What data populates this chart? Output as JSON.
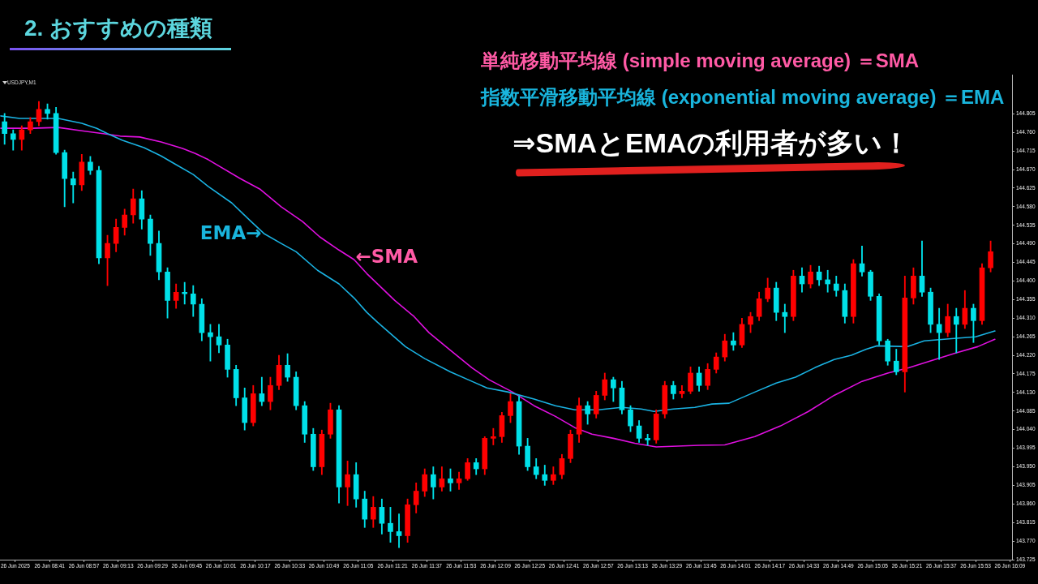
{
  "chart_data": {
    "type": "candlestick",
    "title": "2. おすすめの種類",
    "annotations": [
      "USDJPY,M1",
      "単純移動平均線 (simple moving average) ＝SMA",
      "指数平滑移動平均線 (exponential moving average) ＝EMA",
      "⇒SMAとEMAの利用者が多い！",
      {
        "text": "EMA→",
        "x": "2025-06-26T10:21",
        "y": 144.515
      },
      {
        "text": "←SMA",
        "x": "2025-06-26T11:03",
        "y": 144.452
      }
    ],
    "xlim": [
      "2025-06-26T08:18",
      "2025-06-26T16:10"
    ],
    "xticks": [
      {
        "value": "2025-06-26T08:25",
        "label": "26 Jun 2025"
      },
      {
        "value": "2025-06-26T08:41",
        "label": "26 Jun 08:41"
      },
      {
        "value": "2025-06-26T08:57",
        "label": "26 Jun 08:57"
      },
      {
        "value": "2025-06-26T09:13",
        "label": "26 Jun 09:13"
      },
      {
        "value": "2025-06-26T09:29",
        "label": "26 Jun 09:29"
      },
      {
        "value": "2025-06-26T09:45",
        "label": "26 Jun 09:45"
      },
      {
        "value": "2025-06-26T10:01",
        "label": "26 Jun 10:01"
      },
      {
        "value": "2025-06-26T10:17",
        "label": "26 Jun 10:17"
      },
      {
        "value": "2025-06-26T10:33",
        "label": "26 Jun 10:33"
      },
      {
        "value": "2025-06-26T10:49",
        "label": "26 Jun 10:49"
      },
      {
        "value": "2025-06-26T11:05",
        "label": "26 Jun 11:05"
      },
      {
        "value": "2025-06-26T11:21",
        "label": "26 Jun 11:21"
      },
      {
        "value": "2025-06-26T11:37",
        "label": "26 Jun 11:37"
      },
      {
        "value": "2025-06-26T11:53",
        "label": "26 Jun 11:53"
      },
      {
        "value": "2025-06-26T12:09",
        "label": "26 Jun 12:09"
      },
      {
        "value": "2025-06-26T12:25",
        "label": "26 Jun 12:25"
      },
      {
        "value": "2025-06-26T12:41",
        "label": "26 Jun 12:41"
      },
      {
        "value": "2025-06-26T12:57",
        "label": "26 Jun 12:57"
      },
      {
        "value": "2025-06-26T13:13",
        "label": "26 Jun 13:13"
      },
      {
        "value": "2025-06-26T13:29",
        "label": "26 Jun 13:29"
      },
      {
        "value": "2025-06-26T13:45",
        "label": "26 Jun 13:45"
      },
      {
        "value": "2025-06-26T14:01",
        "label": "26 Jun 14:01"
      },
      {
        "value": "2025-06-26T14:17",
        "label": "26 Jun 14:17"
      },
      {
        "value": "2025-06-26T14:33",
        "label": "26 Jun 14:33"
      },
      {
        "value": "2025-06-26T14:49",
        "label": "26 Jun 14:49"
      },
      {
        "value": "2025-06-26T15:05",
        "label": "26 Jun 15:05"
      },
      {
        "value": "2025-06-26T15:21",
        "label": "26 Jun 15:21"
      },
      {
        "value": "2025-06-26T15:37",
        "label": "26 Jun 15:37"
      },
      {
        "value": "2025-06-26T15:53",
        "label": "26 Jun 15:53"
      },
      {
        "value": "2025-06-26T16:09",
        "label": "26 Jun 16:09"
      }
    ],
    "ylim": [
      143.725,
      144.9
    ],
    "yticks": [
      143.725,
      {
        "value": 143.77,
        "label": "143.770"
      },
      143.815,
      {
        "value": 143.86,
        "label": "143.860"
      },
      143.905,
      {
        "value": 143.95,
        "label": "143.950"
      },
      143.995,
      {
        "value": 144.04,
        "label": "144.040"
      },
      144.085,
      {
        "value": 144.13,
        "label": "144.130"
      },
      144.175,
      {
        "value": 144.22,
        "label": "144.220"
      },
      144.265,
      {
        "value": 144.31,
        "label": "144.310"
      },
      144.355,
      {
        "value": 144.4,
        "label": "144.400"
      },
      144.445,
      {
        "value": 144.49,
        "label": "144.490"
      },
      144.535,
      {
        "value": 144.58,
        "label": "144.580"
      },
      144.625,
      {
        "value": 144.67,
        "label": "144.670"
      },
      144.715,
      {
        "value": 144.76,
        "label": "144.760"
      },
      144.805
    ],
    "x": [
      "2025-06-26T08:20",
      "2025-06-26T08:24",
      "2025-06-26T08:28",
      "2025-06-26T08:32",
      "2025-06-26T08:36",
      "2025-06-26T08:40",
      "2025-06-26T08:44",
      "2025-06-26T08:48",
      "2025-06-26T08:52",
      "2025-06-26T08:56",
      "2025-06-26T09:00",
      "2025-06-26T09:04",
      "2025-06-26T09:08",
      "2025-06-26T09:12",
      "2025-06-26T09:16",
      "2025-06-26T09:20",
      "2025-06-26T09:24",
      "2025-06-26T09:28",
      "2025-06-26T09:32",
      "2025-06-26T09:36",
      "2025-06-26T09:40",
      "2025-06-26T09:44",
      "2025-06-26T09:48",
      "2025-06-26T09:52",
      "2025-06-26T09:56",
      "2025-06-26T10:00",
      "2025-06-26T10:04",
      "2025-06-26T10:08",
      "2025-06-26T10:12",
      "2025-06-26T10:16",
      "2025-06-26T10:20",
      "2025-06-26T10:24",
      "2025-06-26T10:28",
      "2025-06-26T10:32",
      "2025-06-26T10:36",
      "2025-06-26T10:40",
      "2025-06-26T10:44",
      "2025-06-26T10:48",
      "2025-06-26T10:52",
      "2025-06-26T10:56",
      "2025-06-26T11:00",
      "2025-06-26T11:04",
      "2025-06-26T11:08",
      "2025-06-26T11:12",
      "2025-06-26T11:16",
      "2025-06-26T11:20",
      "2025-06-26T11:24",
      "2025-06-26T11:28",
      "2025-06-26T11:32",
      "2025-06-26T11:36",
      "2025-06-26T11:40",
      "2025-06-26T11:44",
      "2025-06-26T11:48",
      "2025-06-26T11:52",
      "2025-06-26T11:56",
      "2025-06-26T12:00",
      "2025-06-26T12:04",
      "2025-06-26T12:08",
      "2025-06-26T12:12",
      "2025-06-26T12:16",
      "2025-06-26T12:20",
      "2025-06-26T12:24",
      "2025-06-26T12:28",
      "2025-06-26T12:32",
      "2025-06-26T12:36",
      "2025-06-26T12:40",
      "2025-06-26T12:44",
      "2025-06-26T12:48",
      "2025-06-26T12:52",
      "2025-06-26T12:56",
      "2025-06-26T13:00",
      "2025-06-26T13:04",
      "2025-06-26T13:08",
      "2025-06-26T13:12",
      "2025-06-26T13:16",
      "2025-06-26T13:20",
      "2025-06-26T13:24",
      "2025-06-26T13:28",
      "2025-06-26T13:32",
      "2025-06-26T13:36",
      "2025-06-26T13:40",
      "2025-06-26T13:44",
      "2025-06-26T13:48",
      "2025-06-26T13:52",
      "2025-06-26T13:56",
      "2025-06-26T14:00",
      "2025-06-26T14:04",
      "2025-06-26T14:08",
      "2025-06-26T14:12",
      "2025-06-26T14:16",
      "2025-06-26T14:20",
      "2025-06-26T14:24",
      "2025-06-26T14:28",
      "2025-06-26T14:32",
      "2025-06-26T14:36",
      "2025-06-26T14:40",
      "2025-06-26T14:44",
      "2025-06-26T14:48",
      "2025-06-26T14:52",
      "2025-06-26T14:56",
      "2025-06-26T15:00",
      "2025-06-26T15:04",
      "2025-06-26T15:08",
      "2025-06-26T15:12",
      "2025-06-26T15:16",
      "2025-06-26T15:20",
      "2025-06-26T15:24",
      "2025-06-26T15:28",
      "2025-06-26T15:32",
      "2025-06-26T15:36",
      "2025-06-26T15:40",
      "2025-06-26T15:44",
      "2025-06-26T15:48",
      "2025-06-26T15:52",
      "2025-06-26T15:56",
      "2025-06-26T16:00"
    ],
    "ohlc": [
      [
        144.786,
        144.806,
        144.731,
        144.757
      ],
      [
        144.757,
        144.766,
        144.717,
        144.743
      ],
      [
        144.743,
        144.776,
        144.717,
        144.766
      ],
      [
        144.766,
        144.796,
        144.757,
        144.786
      ],
      [
        144.786,
        144.835,
        144.776,
        144.816
      ],
      [
        144.816,
        144.829,
        144.792,
        144.806
      ],
      [
        144.806,
        144.821,
        144.707,
        144.711
      ],
      [
        144.711,
        144.717,
        144.58,
        144.648
      ],
      [
        144.648,
        144.664,
        144.589,
        144.633
      ],
      [
        144.633,
        144.707,
        144.619,
        144.688
      ],
      [
        144.688,
        144.702,
        144.658,
        144.668
      ],
      [
        144.668,
        144.678,
        144.442,
        144.456
      ],
      [
        144.456,
        144.511,
        144.389,
        144.491
      ],
      [
        144.491,
        144.55,
        144.471,
        144.53
      ],
      [
        144.53,
        144.574,
        144.511,
        144.56
      ],
      [
        144.56,
        144.623,
        144.54,
        144.599
      ],
      [
        144.599,
        144.619,
        144.526,
        144.55
      ],
      [
        144.55,
        144.56,
        144.462,
        144.491
      ],
      [
        144.491,
        144.521,
        144.403,
        144.422
      ],
      [
        144.422,
        144.432,
        144.31,
        144.353
      ],
      [
        144.353,
        144.393,
        144.334,
        144.373
      ],
      [
        144.373,
        144.397,
        144.344,
        144.369
      ],
      [
        144.369,
        144.389,
        144.314,
        144.344
      ],
      [
        144.344,
        144.357,
        144.255,
        144.275
      ],
      [
        144.275,
        144.295,
        144.206,
        144.265
      ],
      [
        144.265,
        144.295,
        144.226,
        144.245
      ],
      [
        144.245,
        144.259,
        144.167,
        144.186
      ],
      [
        144.186,
        144.196,
        144.098,
        144.117
      ],
      [
        144.117,
        144.141,
        144.039,
        144.057
      ],
      [
        144.057,
        144.147,
        144.049,
        144.127
      ],
      [
        144.127,
        144.167,
        144.098,
        144.108
      ],
      [
        144.108,
        144.167,
        144.088,
        144.147
      ],
      [
        144.147,
        144.22,
        144.137,
        144.196
      ],
      [
        144.196,
        144.224,
        144.157,
        144.167
      ],
      [
        144.167,
        144.18,
        144.088,
        144.098
      ],
      [
        144.098,
        144.108,
        144.009,
        144.029
      ],
      [
        144.029,
        144.043,
        143.941,
        143.95
      ],
      [
        143.95,
        144.039,
        143.931,
        144.029
      ],
      [
        144.029,
        144.104,
        144.019,
        144.088
      ],
      [
        144.088,
        144.098,
        143.862,
        143.901
      ],
      [
        143.901,
        143.964,
        143.856,
        143.931
      ],
      [
        143.931,
        143.96,
        143.852,
        143.872
      ],
      [
        143.872,
        143.891,
        143.803,
        143.823
      ],
      [
        143.823,
        143.878,
        143.803,
        143.852
      ],
      [
        143.852,
        143.872,
        143.787,
        143.813
      ],
      [
        143.813,
        143.852,
        143.767,
        143.793
      ],
      [
        143.793,
        143.836,
        143.754,
        143.783
      ],
      [
        143.783,
        143.872,
        143.767,
        143.858
      ],
      [
        143.858,
        143.911,
        143.838,
        143.891
      ],
      [
        143.891,
        143.945,
        143.878,
        143.931
      ],
      [
        143.931,
        143.95,
        143.872,
        143.901
      ],
      [
        143.901,
        143.95,
        143.891,
        143.921
      ],
      [
        143.921,
        143.945,
        143.891,
        143.911
      ],
      [
        143.911,
        143.937,
        143.895,
        143.921
      ],
      [
        143.921,
        143.97,
        143.917,
        143.96
      ],
      [
        143.96,
        143.97,
        143.931,
        143.945
      ],
      [
        143.945,
        144.023,
        143.931,
        144.019
      ],
      [
        144.019,
        144.043,
        144.003,
        144.023
      ],
      [
        144.023,
        144.082,
        144.009,
        144.074
      ],
      [
        144.074,
        144.127,
        144.057,
        144.108
      ],
      [
        144.108,
        144.121,
        143.98,
        144.0
      ],
      [
        144.0,
        144.019,
        143.941,
        143.95
      ],
      [
        143.95,
        143.97,
        143.921,
        143.931
      ],
      [
        143.931,
        143.954,
        143.905,
        143.917
      ],
      [
        143.917,
        143.95,
        143.907,
        143.931
      ],
      [
        143.931,
        143.98,
        143.921,
        143.97
      ],
      [
        143.97,
        144.039,
        143.96,
        144.029
      ],
      [
        144.029,
        144.117,
        144.009,
        144.098
      ],
      [
        144.098,
        144.108,
        144.053,
        144.078
      ],
      [
        144.078,
        144.133,
        144.068,
        144.123
      ],
      [
        144.123,
        144.177,
        144.112,
        144.161
      ],
      [
        144.161,
        144.167,
        144.108,
        144.141
      ],
      [
        144.141,
        144.157,
        144.078,
        144.088
      ],
      [
        144.088,
        144.098,
        144.035,
        144.049
      ],
      [
        144.049,
        144.062,
        144.009,
        144.019
      ],
      [
        144.019,
        144.029,
        144.002,
        144.015
      ],
      [
        144.015,
        144.088,
        144.007,
        144.078
      ],
      [
        144.078,
        144.157,
        144.068,
        144.147
      ],
      [
        144.147,
        144.157,
        144.114,
        144.127
      ],
      [
        144.127,
        144.147,
        144.117,
        144.133
      ],
      [
        144.133,
        144.192,
        144.127,
        144.177
      ],
      [
        144.177,
        144.192,
        144.133,
        144.147
      ],
      [
        144.147,
        144.2,
        144.137,
        144.186
      ],
      [
        144.186,
        144.226,
        144.177,
        144.216
      ],
      [
        144.216,
        144.271,
        144.206,
        144.255
      ],
      [
        144.255,
        144.275,
        144.232,
        144.245
      ],
      [
        144.245,
        144.31,
        144.239,
        144.295
      ],
      [
        144.295,
        144.324,
        144.275,
        144.314
      ],
      [
        144.314,
        144.373,
        144.304,
        144.357
      ],
      [
        144.357,
        144.407,
        144.35,
        144.383
      ],
      [
        144.383,
        144.397,
        144.304,
        144.324
      ],
      [
        144.324,
        144.344,
        144.275,
        144.314
      ],
      [
        144.314,
        144.426,
        144.304,
        144.412
      ],
      [
        144.412,
        144.432,
        144.373,
        144.393
      ],
      [
        144.393,
        144.438,
        144.383,
        144.422
      ],
      [
        144.422,
        144.436,
        144.389,
        144.403
      ],
      [
        144.403,
        144.426,
        144.373,
        144.393
      ],
      [
        144.393,
        144.412,
        144.363,
        144.377
      ],
      [
        144.377,
        144.393,
        144.298,
        144.314
      ],
      [
        144.314,
        144.452,
        144.298,
        144.442
      ],
      [
        144.442,
        144.485,
        144.412,
        144.422
      ],
      [
        144.422,
        144.426,
        144.353,
        144.363
      ],
      [
        144.363,
        144.369,
        144.245,
        144.255
      ],
      [
        144.255,
        144.259,
        144.196,
        144.206
      ],
      [
        144.206,
        144.235,
        144.173,
        144.18
      ],
      [
        144.18,
        144.412,
        144.131,
        144.359
      ],
      [
        144.359,
        144.432,
        144.344,
        144.412
      ],
      [
        144.412,
        144.497,
        144.363,
        144.373
      ],
      [
        144.373,
        144.383,
        144.275,
        144.295
      ],
      [
        144.295,
        144.334,
        144.21,
        144.275
      ],
      [
        144.275,
        144.344,
        144.265,
        144.314
      ],
      [
        144.314,
        144.334,
        144.226,
        144.295
      ],
      [
        144.295,
        144.377,
        144.285,
        144.334
      ],
      [
        144.334,
        144.344,
        144.251,
        144.304
      ],
      [
        144.304,
        144.442,
        144.295,
        144.432
      ],
      [
        144.432,
        144.497,
        144.422,
        144.471
      ]
    ],
    "colors": [
      "#00e0e8",
      "#00e0e8",
      "#ff0000",
      "#ff0000",
      "#ff0000",
      "#00e0e8",
      "#00e0e8",
      "#00e0e8",
      "#00e0e8",
      "#ff0000",
      "#00e0e8",
      "#00e0e8",
      "#ff0000",
      "#ff0000",
      "#ff0000",
      "#ff0000",
      "#00e0e8",
      "#00e0e8",
      "#00e0e8",
      "#00e0e8",
      "#ff0000",
      "#00e0e8",
      "#00e0e8",
      "#00e0e8",
      "#00e0e8",
      "#00e0e8",
      "#00e0e8",
      "#00e0e8",
      "#00e0e8",
      "#ff0000",
      "#00e0e8",
      "#ff0000",
      "#ff0000",
      "#00e0e8",
      "#00e0e8",
      "#00e0e8",
      "#00e0e8",
      "#ff0000",
      "#ff0000",
      "#00e0e8",
      "#ff0000",
      "#00e0e8",
      "#00e0e8",
      "#ff0000",
      "#00e0e8",
      "#00e0e8",
      "#00e0e8",
      "#ff0000",
      "#ff0000",
      "#ff0000",
      "#00e0e8",
      "#ff0000",
      "#00e0e8",
      "#ff0000",
      "#ff0000",
      "#00e0e8",
      "#ff0000",
      "#ff0000",
      "#ff0000",
      "#ff0000",
      "#00e0e8",
      "#00e0e8",
      "#00e0e8",
      "#00e0e8",
      "#ff0000",
      "#ff0000",
      "#ff0000",
      "#ff0000",
      "#00e0e8",
      "#ff0000",
      "#ff0000",
      "#00e0e8",
      "#00e0e8",
      "#00e0e8",
      "#00e0e8",
      "#00e0e8",
      "#ff0000",
      "#ff0000",
      "#00e0e8",
      "#ff0000",
      "#ff0000",
      "#00e0e8",
      "#ff0000",
      "#ff0000",
      "#ff0000",
      "#00e0e8",
      "#ff0000",
      "#ff0000",
      "#ff0000",
      "#ff0000",
      "#00e0e8",
      "#00e0e8",
      "#ff0000",
      "#00e0e8",
      "#ff0000",
      "#00e0e8",
      "#00e0e8",
      "#00e0e8",
      "#00e0e8",
      "#ff0000",
      "#00e0e8",
      "#00e0e8",
      "#00e0e8",
      "#00e0e8",
      "#00e0e8",
      "#ff0000",
      "#ff0000",
      "#00e0e8",
      "#00e0e8",
      "#00e0e8",
      "#ff0000",
      "#00e0e8",
      "#ff0000",
      "#00e0e8",
      "#ff0000",
      "#ff0000"
    ],
    "series": [
      {
        "type": "line",
        "color": "#1ab2e2",
        "x": [
          "2025-06-26T08:18",
          "2025-06-26T08:27",
          "2025-06-26T08:45",
          "2025-06-26T08:56",
          "2025-06-26T09:03",
          "2025-06-26T09:08",
          "2025-06-26T09:15",
          "2025-06-26T09:25",
          "2025-06-26T09:33",
          "2025-06-26T09:40",
          "2025-06-26T09:48",
          "2025-06-26T09:55",
          "2025-06-26T10:06",
          "2025-06-26T10:15",
          "2025-06-26T10:21",
          "2025-06-26T10:29",
          "2025-06-26T10:36",
          "2025-06-26T10:46",
          "2025-06-26T10:56",
          "2025-06-26T11:03",
          "2025-06-26T11:09",
          "2025-06-26T11:14",
          "2025-06-26T11:27",
          "2025-06-26T11:36",
          "2025-06-26T11:48",
          "2025-06-26T11:58",
          "2025-06-26T12:05",
          "2025-06-26T12:15",
          "2025-06-26T12:27",
          "2025-06-26T12:37",
          "2025-06-26T12:46",
          "2025-06-26T12:57",
          "2025-06-26T13:08",
          "2025-06-26T13:17",
          "2025-06-26T13:23",
          "2025-06-26T13:32",
          "2025-06-26T13:42",
          "2025-06-26T13:50",
          "2025-06-26T13:58",
          "2025-06-26T14:10",
          "2025-06-26T14:20",
          "2025-06-26T14:29",
          "2025-06-26T14:38",
          "2025-06-26T14:47",
          "2025-06-26T14:55",
          "2025-06-26T15:02",
          "2025-06-26T15:07",
          "2025-06-26T15:21",
          "2025-06-26T15:29",
          "2025-06-26T15:43",
          "2025-06-26T15:53",
          "2025-06-26T16:02"
        ],
        "values": [
          144.8,
          144.794,
          144.794,
          144.782,
          144.77,
          144.757,
          144.741,
          144.723,
          144.703,
          144.682,
          144.658,
          144.629,
          144.589,
          144.544,
          144.515,
          144.491,
          144.471,
          144.426,
          144.393,
          144.359,
          144.324,
          144.3,
          144.241,
          144.212,
          144.18,
          144.157,
          144.141,
          144.131,
          144.114,
          144.098,
          144.088,
          144.088,
          144.094,
          144.09,
          144.084,
          144.09,
          144.094,
          144.102,
          144.104,
          144.131,
          144.153,
          144.167,
          144.19,
          144.21,
          144.22,
          144.235,
          144.243,
          144.241,
          144.255,
          144.261,
          144.265,
          144.279
        ]
      },
      {
        "type": "line",
        "color": "#e010e0",
        "x": [
          "2025-06-26T08:18",
          "2025-06-26T08:33",
          "2025-06-26T08:45",
          "2025-06-26T08:56",
          "2025-06-26T09:06",
          "2025-06-26T09:14",
          "2025-06-26T09:23",
          "2025-06-26T09:33",
          "2025-06-26T09:43",
          "2025-06-26T09:49",
          "2025-06-26T09:55",
          "2025-06-26T10:10",
          "2025-06-26T10:19",
          "2025-06-26T10:29",
          "2025-06-26T10:39",
          "2025-06-26T10:47",
          "2025-06-26T10:56",
          "2025-06-26T11:03",
          "2025-06-26T11:09",
          "2025-06-26T11:22",
          "2025-06-26T11:31",
          "2025-06-26T11:38",
          "2025-06-26T11:48",
          "2025-06-26T11:58",
          "2025-06-26T12:06",
          "2025-06-26T12:17",
          "2025-06-26T12:27",
          "2025-06-26T12:37",
          "2025-06-26T12:46",
          "2025-06-26T12:54",
          "2025-06-26T13:04",
          "2025-06-26T13:14",
          "2025-06-26T13:24",
          "2025-06-26T13:34",
          "2025-06-26T13:44",
          "2025-06-26T13:56",
          "2025-06-26T14:10",
          "2025-06-26T14:22",
          "2025-06-26T14:35",
          "2025-06-26T14:47",
          "2025-06-26T15:00",
          "2025-06-26T15:12",
          "2025-06-26T15:22",
          "2025-06-26T15:34",
          "2025-06-26T15:44",
          "2025-06-26T15:54",
          "2025-06-26T16:02"
        ],
        "values": [
          144.77,
          144.77,
          144.772,
          144.764,
          144.757,
          144.751,
          144.749,
          144.737,
          144.721,
          144.709,
          144.694,
          144.648,
          144.623,
          144.58,
          144.544,
          144.507,
          144.475,
          144.452,
          144.418,
          144.353,
          144.314,
          144.275,
          144.232,
          144.19,
          144.161,
          144.131,
          144.098,
          144.072,
          144.045,
          144.029,
          144.019,
          144.007,
          143.998,
          144.0,
          144.002,
          144.003,
          144.023,
          144.049,
          144.084,
          144.123,
          144.157,
          144.177,
          144.19,
          144.21,
          144.226,
          144.241,
          144.259
        ]
      }
    ]
  }
}
